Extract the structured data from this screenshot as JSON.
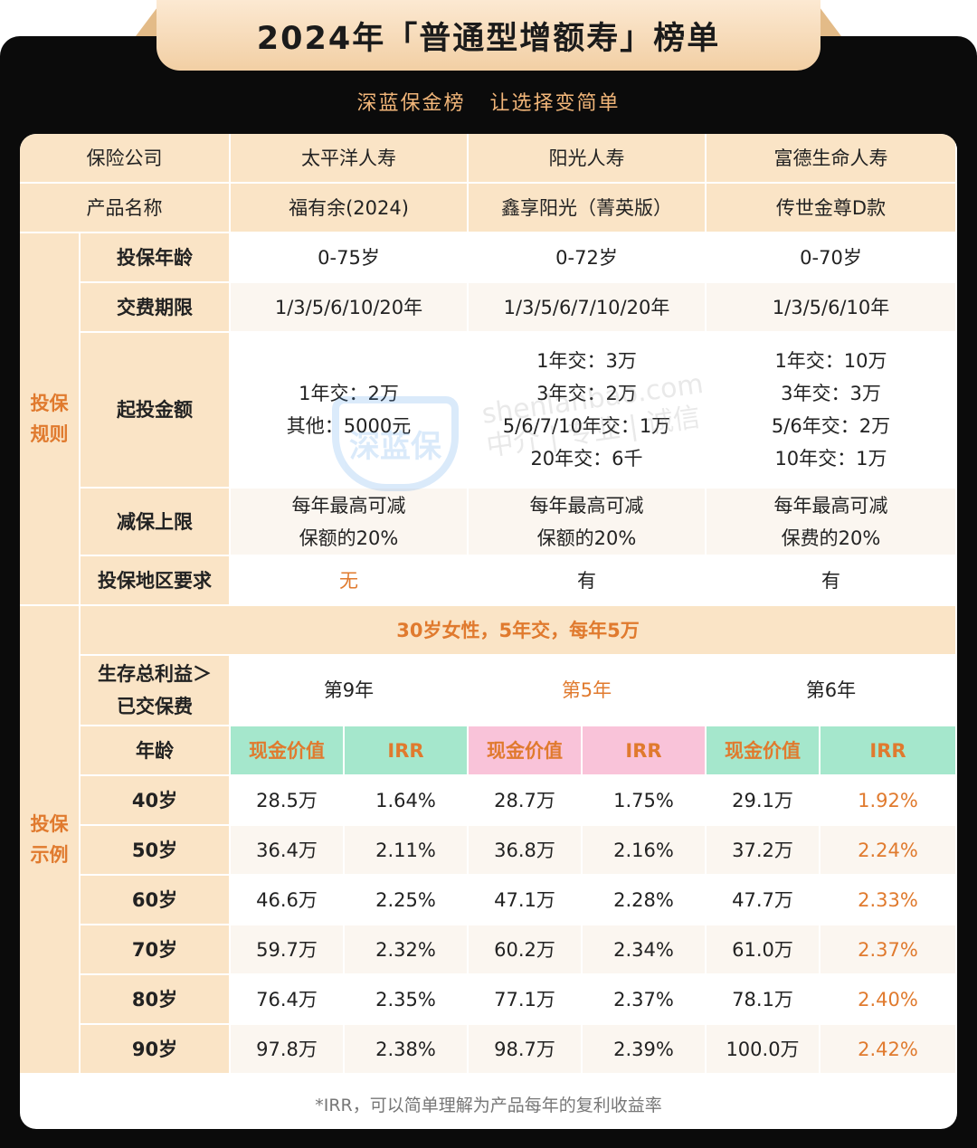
{
  "header": {
    "title": "2024年「普通型增额寿」榜单",
    "subtitle": "深蓝保金榜   让选择变简单"
  },
  "table": {
    "company_label": "保险公司",
    "product_label": "产品名称",
    "companies": [
      "太平洋人寿",
      "阳光人寿",
      "富德生命人寿"
    ],
    "products": [
      "福有余(2024)",
      "鑫享阳光（菁英版）",
      "传世金尊D款"
    ],
    "rules_section": "投保\n规则",
    "rules": {
      "age_label": "投保年龄",
      "age": [
        "0-75岁",
        "0-72岁",
        "0-70岁"
      ],
      "pay_label": "交费期限",
      "pay": [
        "1/3/5/6/10/20年",
        "1/3/5/6/7/10/20年",
        "1/3/5/6/10年"
      ],
      "min_label": "起投金额",
      "min": [
        "1年交：2万\n其他：5000元",
        "1年交：3万\n3年交：2万\n5/6/7/10年交：1万\n20年交：6千",
        "1年交：10万\n3年交：3万\n5/6年交：2万\n10年交：1万"
      ],
      "reduce_label": "减保上限",
      "reduce": [
        "每年最高可减\n保额的20%",
        "每年最高可减\n保额的20%",
        "每年最高可减\n保费的20%"
      ],
      "region_label": "投保地区要求",
      "region": [
        "无",
        "有",
        "有"
      ]
    },
    "example_section": "投保\n示例",
    "example": {
      "scenario": "30岁女性，5年交，每年5万",
      "breakeven_label": "生存总利益＞\n已交保费",
      "breakeven": [
        "第9年",
        "第5年",
        "第6年"
      ],
      "age_label": "年龄",
      "cv_label": "现金价值",
      "irr_label": "IRR",
      "rows": [
        {
          "age": "40岁",
          "vals": [
            "28.5万",
            "1.64%",
            "28.7万",
            "1.75%",
            "29.1万",
            "1.92%"
          ]
        },
        {
          "age": "50岁",
          "vals": [
            "36.4万",
            "2.11%",
            "36.8万",
            "2.16%",
            "37.2万",
            "2.24%"
          ]
        },
        {
          "age": "60岁",
          "vals": [
            "46.6万",
            "2.25%",
            "47.1万",
            "2.28%",
            "47.7万",
            "2.33%"
          ]
        },
        {
          "age": "70岁",
          "vals": [
            "59.7万",
            "2.32%",
            "60.2万",
            "2.34%",
            "61.0万",
            "2.37%"
          ]
        },
        {
          "age": "80岁",
          "vals": [
            "76.4万",
            "2.35%",
            "77.1万",
            "2.37%",
            "78.1万",
            "2.40%"
          ]
        },
        {
          "age": "90岁",
          "vals": [
            "97.8万",
            "2.38%",
            "98.7万",
            "2.39%",
            "100.0万",
            "2.42%"
          ]
        }
      ]
    },
    "footnote": "*IRR，可以简单理解为产品每年的复利收益率"
  },
  "watermark": {
    "shield_text": "深蓝保",
    "site_text": "shenlanbao.com\n中介 | 专业 | 诚信"
  },
  "colors": {
    "accent": "#e07a2e",
    "header_bg": "#fae4c6",
    "green": "#a5e7cc",
    "pink": "#f9c3d9",
    "frame": "#0b0b0b"
  }
}
